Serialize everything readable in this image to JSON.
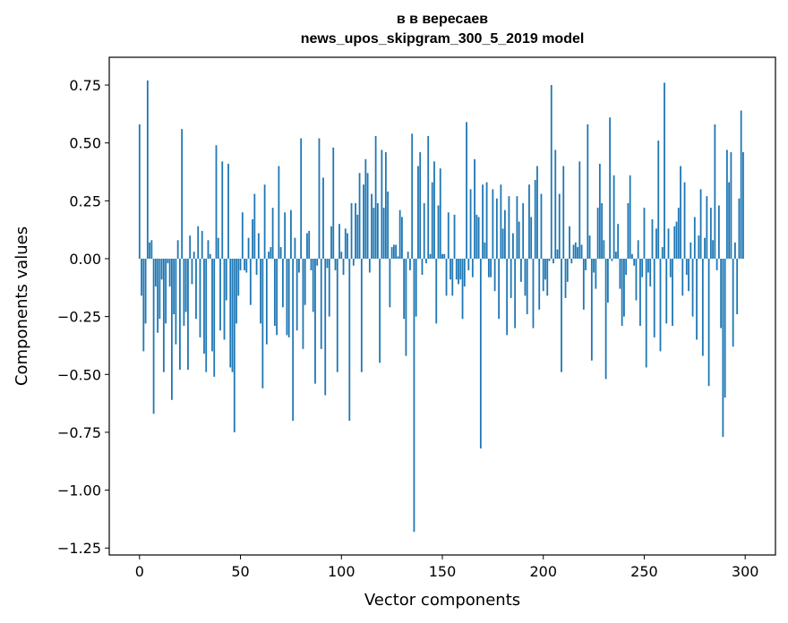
{
  "chart_data": {
    "type": "bar",
    "title": "в в вересаев",
    "subtitle": "news_upos_skipgram_300_5_2019 model",
    "xlabel": "Vector components",
    "ylabel": "Components values",
    "xlim": [
      -15,
      315
    ],
    "ylim": [
      -1.28,
      0.87
    ],
    "x_ticks": [
      0,
      50,
      100,
      150,
      200,
      250,
      300
    ],
    "x_tick_labels": [
      "0",
      "50",
      "100",
      "150",
      "200",
      "250",
      "300"
    ],
    "y_ticks": [
      0.75,
      0.5,
      0.25,
      0.0,
      -0.25,
      -0.5,
      -0.75,
      -1.0,
      -1.25
    ],
    "y_tick_labels": [
      "0.75",
      "0.50",
      "0.25",
      "0.00",
      "−0.25",
      "−0.50",
      "−0.75",
      "−1.00",
      "−1.25"
    ],
    "grid": false,
    "legend": "none",
    "bar_color": "#1f77b4",
    "x": "0..299",
    "values": [
      0.58,
      -0.16,
      -0.4,
      -0.28,
      0.77,
      0.07,
      0.08,
      -0.67,
      -0.12,
      -0.32,
      -0.26,
      -0.09,
      -0.49,
      -0.28,
      -0.02,
      -0.12,
      -0.61,
      -0.24,
      -0.37,
      0.08,
      -0.48,
      0.56,
      -0.29,
      -0.23,
      -0.48,
      0.1,
      -0.11,
      0.03,
      -0.26,
      0.14,
      -0.34,
      0.12,
      -0.41,
      -0.49,
      0.08,
      0.02,
      -0.4,
      -0.51,
      0.49,
      0.09,
      -0.31,
      0.42,
      -0.35,
      -0.18,
      0.41,
      -0.47,
      -0.49,
      -0.75,
      -0.28,
      -0.16,
      -0.05,
      0.2,
      -0.05,
      -0.06,
      0.09,
      -0.2,
      0.17,
      0.28,
      -0.07,
      0.11,
      -0.28,
      -0.56,
      0.32,
      -0.37,
      0.03,
      0.05,
      0.22,
      -0.29,
      -0.33,
      0.4,
      0.05,
      -0.21,
      0.2,
      -0.33,
      -0.34,
      0.21,
      -0.7,
      0.09,
      -0.31,
      -0.06,
      0.52,
      -0.39,
      -0.2,
      0.11,
      0.12,
      -0.05,
      -0.23,
      -0.54,
      -0.03,
      0.52,
      -0.39,
      0.35,
      -0.59,
      -0.04,
      -0.25,
      0.14,
      0.48,
      -0.05,
      -0.49,
      0.15,
      0.03,
      -0.07,
      0.13,
      0.11,
      -0.7,
      0.24,
      -0.03,
      0.24,
      0.19,
      0.37,
      -0.49,
      0.32,
      0.43,
      0.37,
      -0.06,
      0.28,
      0.22,
      0.53,
      0.24,
      -0.45,
      0.47,
      0.22,
      0.46,
      0.29,
      -0.21,
      0.05,
      0.06,
      0.06,
      0.01,
      0.21,
      0.18,
      -0.26,
      -0.42,
      0.03,
      -0.05,
      0.54,
      -1.18,
      -0.25,
      0.4,
      0.46,
      -0.07,
      0.24,
      -0.02,
      0.53,
      0.02,
      0.33,
      0.42,
      -0.28,
      0.23,
      0.39,
      0.02,
      0.02,
      -0.16,
      0.2,
      -0.09,
      -0.16,
      0.19,
      -0.09,
      -0.11,
      -0.09,
      -0.26,
      -0.12,
      0.59,
      -0.05,
      0.3,
      -0.08,
      0.43,
      0.19,
      0.18,
      -0.82,
      0.32,
      0.07,
      0.33,
      -0.08,
      -0.08,
      0.3,
      -0.14,
      0.26,
      -0.26,
      0.32,
      0.13,
      0.21,
      -0.33,
      0.27,
      -0.17,
      0.11,
      -0.3,
      0.27,
      0.16,
      -0.1,
      0.24,
      -0.16,
      -0.24,
      0.32,
      0.18,
      -0.3,
      0.34,
      0.4,
      -0.22,
      0.28,
      -0.14,
      -0.09,
      -0.16,
      -0.01,
      0.75,
      -0.02,
      0.47,
      0.04,
      0.28,
      -0.49,
      0.4,
      -0.17,
      -0.1,
      0.14,
      -0.02,
      0.06,
      0.07,
      0.05,
      0.42,
      0.06,
      -0.22,
      -0.05,
      0.58,
      0.1,
      -0.44,
      -0.06,
      -0.13,
      0.22,
      0.41,
      0.24,
      0.08,
      -0.52,
      -0.19,
      0.61,
      -0.01,
      0.36,
      0.03,
      0.15,
      -0.13,
      -0.29,
      -0.25,
      -0.07,
      0.24,
      0.36,
      0.02,
      -0.03,
      -0.18,
      0.08,
      -0.29,
      -0.08,
      0.22,
      -0.47,
      -0.06,
      -0.12,
      0.17,
      -0.34,
      0.13,
      0.51,
      -0.4,
      0.05,
      0.76,
      -0.28,
      0.13,
      -0.08,
      -0.29,
      0.14,
      0.16,
      0.22,
      0.4,
      -0.16,
      0.33,
      -0.07,
      -0.14,
      0.07,
      -0.25,
      0.18,
      -0.35,
      0.1,
      0.3,
      -0.42,
      0.09,
      0.27,
      -0.55,
      0.22,
      0.08,
      0.58,
      -0.05,
      0.23,
      -0.3,
      -0.77,
      -0.6,
      0.47,
      0.33,
      0.46,
      -0.38,
      0.07,
      -0.24,
      0.26,
      0.64,
      0.46
    ]
  }
}
